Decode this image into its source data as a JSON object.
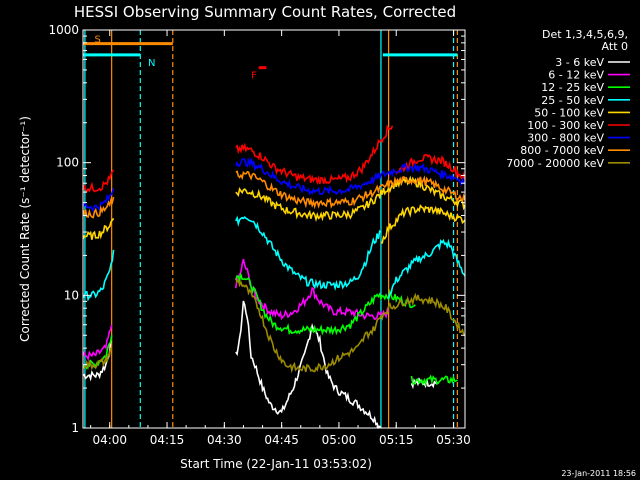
{
  "chart_data": {
    "type": "line",
    "title": "HESSI Observing Summary Count Rates, Corrected",
    "xlabel": "Start Time (22-Jan-11 03:53:02)",
    "ylabel": "Corrected Count Rate (s⁻¹ detector⁻¹)",
    "x_unit": "minutes after 03:53:02",
    "xlim": [
      0,
      100
    ],
    "ylim": [
      1,
      1000
    ],
    "y_scale": "log",
    "x_ticks": [
      {
        "t": 7,
        "label": "04:00"
      },
      {
        "t": 22,
        "label": "04:15"
      },
      {
        "t": 37,
        "label": "04:30"
      },
      {
        "t": 52,
        "label": "04:45"
      },
      {
        "t": 67,
        "label": "05:00"
      },
      {
        "t": 82,
        "label": "05:15"
      },
      {
        "t": 97,
        "label": "05:30"
      }
    ],
    "y_ticks": [
      {
        "v": 1,
        "label": "1"
      },
      {
        "v": 10,
        "label": "10"
      },
      {
        "v": 100,
        "label": "100"
      },
      {
        "v": 1000,
        "label": "1000"
      }
    ],
    "legend_header": [
      "Det 1,3,4,5,6,9,",
      "Att 0"
    ],
    "series": [
      {
        "name": "3 - 6 keV",
        "color": "#ffffff",
        "segments": [
          [
            [
              0,
              2.5
            ],
            [
              2,
              2.5
            ],
            [
              4,
              2.5
            ],
            [
              6,
              3.0
            ],
            [
              7.5,
              4.5
            ]
          ],
          [
            [
              40,
              3.5
            ],
            [
              41,
              4.5
            ],
            [
              42,
              9.0
            ],
            [
              43,
              7.0
            ],
            [
              44,
              3.5
            ],
            [
              45,
              3.0
            ],
            [
              47,
              2.0
            ],
            [
              49,
              1.5
            ],
            [
              52,
              1.3
            ],
            [
              55,
              2.0
            ],
            [
              58,
              3.5
            ],
            [
              60,
              6.0
            ],
            [
              62,
              4.5
            ],
            [
              64,
              2.5
            ],
            [
              66,
              2.0
            ],
            [
              68,
              1.8
            ],
            [
              72,
              1.5
            ],
            [
              76,
              1.2
            ],
            [
              78,
              1.0
            ]
          ],
          [
            [
              86,
              2.2
            ],
            [
              88,
              2.2
            ],
            [
              90,
              2.2
            ],
            [
              93,
              2.2
            ]
          ]
        ]
      },
      {
        "name": "6 - 12 keV",
        "color": "#ff00ff",
        "segments": [
          [
            [
              0,
              3.5
            ],
            [
              3,
              3.5
            ],
            [
              6,
              4.0
            ],
            [
              7.5,
              6.0
            ]
          ],
          [
            [
              40,
              12
            ],
            [
              41,
              14
            ],
            [
              42,
              18
            ],
            [
              43,
              15
            ],
            [
              44,
              12
            ],
            [
              45,
              10
            ],
            [
              47,
              8.5
            ],
            [
              49,
              7.5
            ],
            [
              52,
              7.0
            ],
            [
              55,
              7.5
            ],
            [
              58,
              9.0
            ],
            [
              60,
              11
            ],
            [
              62,
              9.0
            ],
            [
              64,
              8.0
            ],
            [
              66,
              7.5
            ],
            [
              70,
              7.5
            ],
            [
              74,
              7.0
            ],
            [
              78,
              7.0
            ],
            [
              80,
              7.5
            ]
          ]
        ]
      },
      {
        "name": "12 - 25 keV",
        "color": "#00ff00",
        "segments": [
          [
            [
              0,
              3.0
            ],
            [
              3,
              3.0
            ],
            [
              6,
              3.5
            ],
            [
              7.5,
              5.0
            ]
          ],
          [
            [
              40,
              14
            ],
            [
              42,
              14
            ],
            [
              44,
              12
            ],
            [
              46,
              9.0
            ],
            [
              48,
              7.0
            ],
            [
              50,
              6.0
            ],
            [
              54,
              5.5
            ],
            [
              58,
              5.5
            ],
            [
              62,
              5.5
            ],
            [
              66,
              5.5
            ],
            [
              70,
              6.0
            ],
            [
              74,
              8.0
            ],
            [
              77,
              10
            ],
            [
              80,
              10
            ],
            [
              84,
              9.0
            ],
            [
              87,
              8.5
            ]
          ],
          [
            [
              86,
              2.3
            ],
            [
              90,
              2.3
            ],
            [
              93,
              2.3
            ],
            [
              96,
              2.3
            ],
            [
              98,
              2.3
            ]
          ]
        ]
      },
      {
        "name": "25 - 50 keV",
        "color": "#00ffff",
        "segments": [
          [
            [
              0,
              10
            ],
            [
              3,
              10
            ],
            [
              5,
              11
            ],
            [
              7,
              15
            ],
            [
              8,
              22
            ]
          ],
          [
            [
              40,
              35
            ],
            [
              42,
              40
            ],
            [
              44,
              38
            ],
            [
              47,
              30
            ],
            [
              50,
              22
            ],
            [
              53,
              17
            ],
            [
              56,
              14
            ],
            [
              59,
              12.5
            ],
            [
              62,
              12
            ],
            [
              66,
              12
            ],
            [
              70,
              12.5
            ],
            [
              72,
              14
            ],
            [
              74,
              18
            ],
            [
              76,
              25
            ],
            [
              78,
              30
            ]
          ],
          [
            [
              80,
              10
            ],
            [
              82,
              13
            ],
            [
              84,
              15
            ],
            [
              86,
              17
            ],
            [
              88,
              19
            ],
            [
              90,
              20
            ],
            [
              92,
              22
            ],
            [
              94,
              25
            ],
            [
              96,
              24
            ],
            [
              98,
              18
            ],
            [
              100,
              14
            ]
          ]
        ]
      },
      {
        "name": "50 - 100 keV",
        "color": "#ffd700",
        "segments": [
          [
            [
              0,
              28
            ],
            [
              3,
              28
            ],
            [
              5,
              30
            ],
            [
              7,
              34
            ],
            [
              8,
              38
            ]
          ],
          [
            [
              40,
              60
            ],
            [
              42,
              62
            ],
            [
              44,
              60
            ],
            [
              47,
              55
            ],
            [
              50,
              48
            ],
            [
              53,
              44
            ],
            [
              56,
              42
            ],
            [
              59,
              40
            ],
            [
              62,
              40
            ],
            [
              66,
              40
            ],
            [
              70,
              41
            ],
            [
              73,
              45
            ],
            [
              76,
              52
            ],
            [
              79,
              62
            ],
            [
              82,
              70
            ],
            [
              85,
              72
            ],
            [
              88,
              70
            ],
            [
              91,
              62
            ],
            [
              94,
              56
            ],
            [
              97,
              52
            ],
            [
              100,
              48
            ]
          ],
          [
            [
              78,
              25
            ],
            [
              80,
              32
            ],
            [
              84,
              42
            ],
            [
              88,
              45
            ],
            [
              92,
              44
            ],
            [
              96,
              40
            ],
            [
              100,
              37
            ]
          ]
        ]
      },
      {
        "name": "100 - 300 keV",
        "color": "#ff0000",
        "segments": [
          [
            [
              0,
              65
            ],
            [
              3,
              64
            ],
            [
              5,
              66
            ],
            [
              7,
              75
            ],
            [
              8,
              88
            ]
          ],
          [
            [
              40,
              125
            ],
            [
              42,
              128
            ],
            [
              44,
              124
            ],
            [
              47,
              110
            ],
            [
              50,
              92
            ],
            [
              53,
              84
            ],
            [
              56,
              78
            ],
            [
              59,
              75
            ],
            [
              62,
              74
            ],
            [
              66,
              74
            ],
            [
              70,
              78
            ],
            [
              73,
              90
            ],
            [
              76,
              120
            ],
            [
              78,
              150
            ],
            [
              80,
              180
            ],
            [
              81,
              190
            ]
          ],
          [
            [
              82,
              85
            ],
            [
              85,
              96
            ],
            [
              88,
              108
            ],
            [
              91,
              107
            ],
            [
              94,
              103
            ],
            [
              97,
              90
            ],
            [
              100,
              75
            ]
          ]
        ]
      },
      {
        "name": "300 - 800 keV",
        "color": "#0000ff",
        "segments": [
          [
            [
              0,
              48
            ],
            [
              3,
              46
            ],
            [
              5,
              48
            ],
            [
              7,
              55
            ],
            [
              8,
              64
            ]
          ],
          [
            [
              40,
              100
            ],
            [
              42,
              102
            ],
            [
              44,
              99
            ],
            [
              47,
              90
            ],
            [
              50,
              78
            ],
            [
              53,
              70
            ],
            [
              56,
              65
            ],
            [
              59,
              62
            ],
            [
              62,
              61
            ],
            [
              66,
              61
            ],
            [
              70,
              63
            ],
            [
              73,
              68
            ],
            [
              76,
              75
            ],
            [
              79,
              82
            ],
            [
              82,
              88
            ],
            [
              85,
              92
            ],
            [
              88,
              92
            ],
            [
              91,
              88
            ],
            [
              94,
              82
            ],
            [
              97,
              78
            ],
            [
              100,
              72
            ]
          ]
        ]
      },
      {
        "name": "800 - 7000 keV",
        "color": "#ff8c00",
        "segments": [
          [
            [
              0,
              42
            ],
            [
              3,
              41
            ],
            [
              5,
              43
            ],
            [
              7,
              48
            ],
            [
              8,
              55
            ]
          ],
          [
            [
              40,
              80
            ],
            [
              42,
              82
            ],
            [
              44,
              80
            ],
            [
              47,
              72
            ],
            [
              50,
              62
            ],
            [
              53,
              56
            ],
            [
              56,
              52
            ],
            [
              59,
              50
            ],
            [
              62,
              50
            ],
            [
              66,
              50
            ],
            [
              70,
              51
            ],
            [
              73,
              55
            ],
            [
              76,
              60
            ],
            [
              79,
              66
            ],
            [
              82,
              72
            ],
            [
              85,
              74
            ],
            [
              88,
              74
            ],
            [
              91,
              70
            ],
            [
              94,
              64
            ],
            [
              97,
              58
            ],
            [
              100,
              52
            ]
          ]
        ]
      },
      {
        "name": "7000 - 20000 keV",
        "color": "#9b8b00",
        "segments": [
          [
            [
              0,
              3.0
            ],
            [
              3,
              3.0
            ],
            [
              6,
              3.2
            ],
            [
              7.5,
              4.0
            ]
          ],
          [
            [
              40,
              13
            ],
            [
              42,
              12
            ],
            [
              44,
              10
            ],
            [
              46,
              8.0
            ],
            [
              48,
              5.5
            ],
            [
              50,
              4.0
            ],
            [
              53,
              3.0
            ],
            [
              56,
              2.8
            ],
            [
              60,
              2.8
            ],
            [
              64,
              3.0
            ],
            [
              68,
              3.5
            ],
            [
              72,
              4.0
            ],
            [
              74,
              5.0
            ],
            [
              76,
              5.5
            ],
            [
              78,
              7.0
            ],
            [
              80,
              8.0
            ],
            [
              84,
              9.0
            ],
            [
              88,
              9.5
            ],
            [
              92,
              9.0
            ],
            [
              95,
              8.0
            ],
            [
              98,
              6.0
            ],
            [
              100,
              5.0
            ]
          ]
        ]
      }
    ],
    "flags": [
      {
        "label": "S",
        "color": "#ff8c00",
        "bar": [
          0,
          23.5
        ],
        "level": 790,
        "label_t": 3
      },
      {
        "label": "N",
        "color": "#00ffff",
        "bar": [
          0,
          15
        ],
        "level": 650,
        "label_t": 17
      },
      {
        "label": "F",
        "color": "#ff0000",
        "bar": [
          46,
          48
        ],
        "level": 520,
        "label_t": 44
      }
    ],
    "vlines": [
      {
        "t": 0.5,
        "color": "#00ffff",
        "style": "solid"
      },
      {
        "t": 7.5,
        "color": "#ff8c00",
        "style": "solid"
      },
      {
        "t": 15,
        "color": "#00ffff",
        "style": "dashed"
      },
      {
        "t": 23.5,
        "color": "#ff8c00",
        "style": "dashed"
      },
      {
        "t": 78,
        "color": "#00ffff",
        "style": "solid"
      },
      {
        "t": 80,
        "color": "#ff8c00",
        "style": "solid"
      },
      {
        "t": 97,
        "color": "#00ffff",
        "style": "dashed"
      },
      {
        "t": 98,
        "color": "#ff8c00",
        "style": "dashed"
      }
    ],
    "cyan_top_bar": [
      78.5,
      98
    ]
  },
  "footer": {
    "date_stamp": "23-Jan-2011 18:56"
  }
}
